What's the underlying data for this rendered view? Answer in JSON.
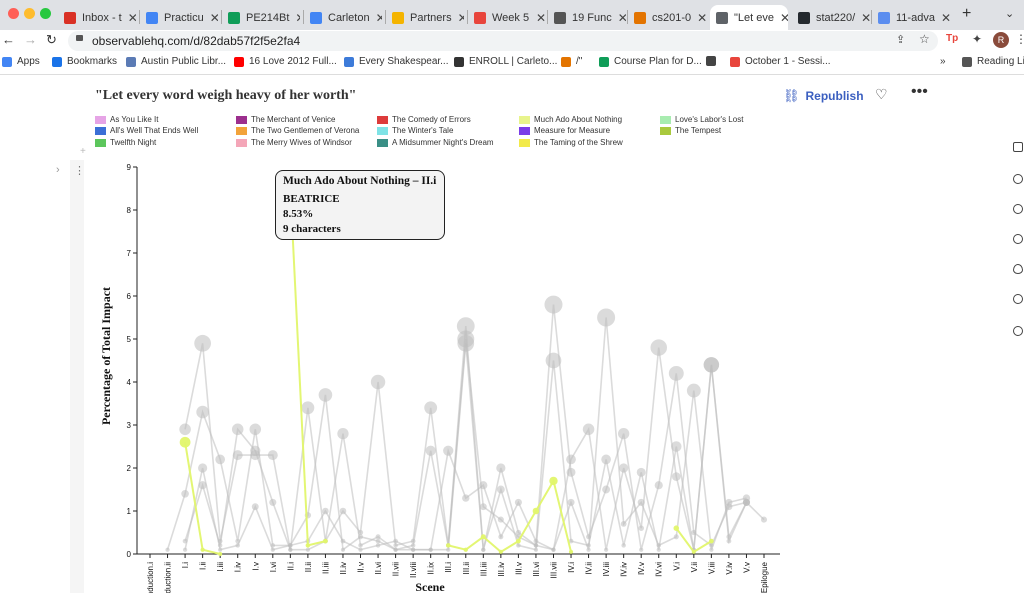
{
  "browser": {
    "tabs": [
      {
        "label": "Inbox - t",
        "color": "#d93025"
      },
      {
        "label": "Practicu",
        "color": "#4285f4"
      },
      {
        "label": "PE214Bt",
        "color": "#0f9d58"
      },
      {
        "label": "Carleton",
        "color": "#4285f4"
      },
      {
        "label": "Partners",
        "color": "#f4b400"
      },
      {
        "label": "Week 5",
        "color": "#e8453c"
      },
      {
        "label": "19 Func",
        "color": "#555555"
      },
      {
        "label": "cs201-0",
        "color": "#e37400"
      },
      {
        "label": "\"Let eve",
        "color": "#5f6368"
      },
      {
        "label": "stat220/",
        "color": "#24292e"
      },
      {
        "label": "11-adva",
        "color": "#5b8def"
      }
    ],
    "url": "observablehq.com/d/82dab57f2f5e2fa4",
    "bookmarks": [
      {
        "label": "Apps",
        "color": "#4285f4"
      },
      {
        "label": "Bookmarks",
        "color": "#1a73e8"
      },
      {
        "label": "Austin Public Libr...",
        "color": "#5b7bb5"
      },
      {
        "label": "16 Love 2012 Full...",
        "color": "#ff0000"
      },
      {
        "label": "Every Shakespear...",
        "color": "#3d7bd9"
      },
      {
        "label": "ENROLL | Carleto...",
        "color": "#333333"
      },
      {
        "label": "/\"",
        "color": "#e37400"
      },
      {
        "label": "Course Plan for D...",
        "color": "#0f9d58"
      },
      {
        "label": "",
        "color": "#444444"
      },
      {
        "label": "October 1 - Sessi...",
        "color": "#e8453c"
      },
      {
        "label": "»",
        "color": "#ffffff"
      },
      {
        "label": "Reading List",
        "color": "#555555"
      }
    ]
  },
  "notebook": {
    "title": "\"Let every word weigh heavy of her worth\"",
    "republish_label": "Republish"
  },
  "legend": [
    {
      "label": "As You Like It",
      "color": "#e6a4e6"
    },
    {
      "label": "All's Well That Ends Well",
      "color": "#3b6fd6"
    },
    {
      "label": "Twelfth Night",
      "color": "#5cc65c"
    },
    {
      "label": "The Merchant of Venice",
      "color": "#9c2f8e"
    },
    {
      "label": "The Two Gentlemen of Verona",
      "color": "#f2a33a"
    },
    {
      "label": "The Merry Wives of Windsor",
      "color": "#f4a6b8"
    },
    {
      "label": "The Comedy of Errors",
      "color": "#dd3b3b"
    },
    {
      "label": "The Winter's Tale",
      "color": "#7fe3e6"
    },
    {
      "label": "A Midsummer Night's Dream",
      "color": "#3a8f86"
    },
    {
      "label": "Much Ado About Nothing",
      "color": "#e8f48c"
    },
    {
      "label": "Measure for Measure",
      "color": "#7a3de8"
    },
    {
      "label": "The Taming of the Shrew",
      "color": "#f2ea4a"
    },
    {
      "label": "Love's Labor's Lost",
      "color": "#a8ecb0"
    },
    {
      "label": "The Tempest",
      "color": "#a9c93d"
    }
  ],
  "tooltip": {
    "scene": "Much Ado About Nothing – II.i",
    "character": "BEATRICE",
    "percent": "8.53%",
    "characters": "9 characters"
  },
  "chart_data": {
    "type": "line",
    "xlabel": "Scene",
    "ylabel": "Percentage of Total Impact",
    "ylim": [
      0,
      9
    ],
    "yticks": [
      "0",
      "1",
      "2",
      "3",
      "4",
      "5",
      "6",
      "7",
      "8",
      "9"
    ],
    "categories": [
      "Induction.i",
      "Induction.ii",
      "I.i",
      "I.ii",
      "I.iii",
      "I.iv",
      "I.v",
      "I.vi",
      "II.i",
      "II.ii",
      "II.iii",
      "II.iv",
      "II.v",
      "II.vi",
      "II.vii",
      "II.viii",
      "II.ix",
      "III.i",
      "III.ii",
      "III.iii",
      "III.iv",
      "III.v",
      "III.vi",
      "III.vii",
      "IV.i",
      "IV.ii",
      "IV.iii",
      "IV.iv",
      "IV.v",
      "IV.vi",
      "V.i",
      "V.ii",
      "V.iii",
      "V.iv",
      "V.v",
      "Epilogue"
    ],
    "series": [
      {
        "name": "Much Ado About Nothing",
        "highlight": true,
        "values": [
          null,
          null,
          2.6,
          0.1,
          0,
          null,
          null,
          null,
          8.53,
          0.2,
          0.3,
          null,
          null,
          null,
          null,
          null,
          null,
          0.2,
          0.1,
          0.4,
          0.05,
          0.3,
          1.0,
          1.7,
          0.05,
          null,
          null,
          null,
          null,
          null,
          0.6,
          0.05,
          0.3,
          null,
          null,
          null
        ]
      },
      {
        "values": [
          null,
          null,
          2.9,
          4.9,
          0.3,
          2.3,
          2.3,
          2.3,
          0.1,
          3.4,
          0.3,
          1.0,
          0.5,
          4.0,
          0.2,
          0.3,
          3.4,
          0.2,
          5.0,
          1.1,
          0.8,
          0.4,
          0.2,
          5.8,
          1.9,
          0.4,
          1.5,
          2.8,
          0.1,
          1.6,
          4.2,
          0.5,
          0.2,
          1.1,
          1.2,
          null
        ]
      },
      {
        "values": [
          null,
          0.1,
          1.4,
          3.3,
          2.2,
          0.3,
          2.9,
          0.2,
          0.2,
          0.9,
          3.7,
          0.1,
          0.4,
          0.3,
          0.1,
          0.1,
          0.1,
          0.1,
          4.9,
          0.1,
          1.5,
          0.2,
          0.1,
          4.5,
          0.3,
          0.2,
          2.2,
          0.2,
          1.9,
          0.1,
          2.5,
          0.1,
          4.4,
          0.3,
          1.2,
          0.8
        ]
      },
      {
        "values": [
          null,
          null,
          0.3,
          1.6,
          0.2,
          2.9,
          2.4,
          1.2,
          0.1,
          0.1,
          0.3,
          2.8,
          0.2,
          0.4,
          0.1,
          0.2,
          2.4,
          0.2,
          5.3,
          0.1,
          2.0,
          0.5,
          0.2,
          0.1,
          2.2,
          2.9,
          0.1,
          2.0,
          0.6,
          4.8,
          1.8,
          0.1,
          4.4,
          0.4,
          1.2,
          null
        ]
      },
      {
        "values": [
          null,
          null,
          0.1,
          2.0,
          0.1,
          0.2,
          1.1,
          0.1,
          0.2,
          0.3,
          1.0,
          0.3,
          0.1,
          0.2,
          0.3,
          0.1,
          0.1,
          2.4,
          1.3,
          1.6,
          0.4,
          1.2,
          0.3,
          0.1,
          1.2,
          0.1,
          5.5,
          0.7,
          1.2,
          0.2,
          0.4,
          3.8,
          0.1,
          1.2,
          1.3,
          null
        ]
      }
    ]
  }
}
